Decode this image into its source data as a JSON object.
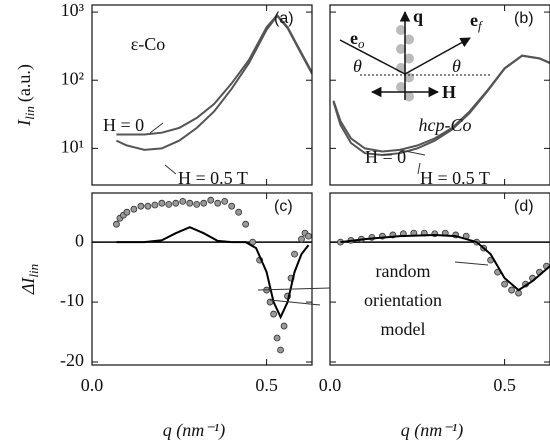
{
  "chart_data": [
    {
      "type": "line",
      "panel_label": "(a)",
      "ylog": true,
      "xlim": [
        0,
        0.63
      ],
      "ylim": [
        2.9,
        1270
      ],
      "xticks": [
        0,
        0.5
      ],
      "xtick_labels": false,
      "yticks": [
        {
          "value": 10,
          "label": "10¹"
        },
        {
          "value": 100,
          "label": "10²"
        },
        {
          "value": 1000,
          "label": "10³"
        }
      ],
      "ytick_labels": true,
      "ylabel": {
        "text": "I",
        "sub": "lin",
        "unit": "(a.u.)"
      },
      "annotations": [
        {
          "text": "ε-Co"
        }
      ],
      "series": [
        {
          "name": "H = 0",
          "color": "#555555",
          "style": "line",
          "x": [
            0.07,
            0.1,
            0.15,
            0.2,
            0.25,
            0.3,
            0.35,
            0.4,
            0.45,
            0.5,
            0.53,
            0.56,
            0.6,
            0.63
          ],
          "values": [
            16,
            16,
            16,
            17,
            20,
            28,
            45,
            90,
            200,
            600,
            900,
            600,
            250,
            130
          ]
        },
        {
          "name": "H = 0.5 T",
          "color": "#555555",
          "style": "line",
          "x": [
            0.07,
            0.1,
            0.15,
            0.2,
            0.25,
            0.3,
            0.35,
            0.4,
            0.45,
            0.5,
            0.53,
            0.56,
            0.6,
            0.63
          ],
          "values": [
            13,
            11,
            9.5,
            10,
            13,
            20,
            35,
            75,
            180,
            550,
            880,
            580,
            240,
            125
          ]
        }
      ]
    },
    {
      "type": "line",
      "panel_label": "(b)",
      "ylog": true,
      "xlim": [
        0,
        0.63
      ],
      "ylim": [
        2.9,
        1270
      ],
      "xticks": [
        0,
        0.5
      ],
      "xtick_labels": false,
      "yticks": [
        10,
        100,
        1000
      ],
      "ytick_labels": false,
      "annotations": [
        {
          "text": "hcp-Co"
        }
      ],
      "inset_labels": [
        {
          "text": "e",
          "sub": "o"
        },
        {
          "text": "q"
        },
        {
          "text": "e",
          "sub": "f"
        },
        {
          "text": "θ"
        },
        {
          "text": "θ"
        },
        {
          "text": "H"
        }
      ],
      "series": [
        {
          "name": "H = 0",
          "color": "#555555",
          "style": "line",
          "x": [
            0.01,
            0.03,
            0.06,
            0.1,
            0.15,
            0.2,
            0.25,
            0.3,
            0.35,
            0.4,
            0.45,
            0.5,
            0.55,
            0.6,
            0.63
          ],
          "values": [
            50,
            25,
            14,
            10,
            9,
            9.5,
            11,
            14,
            20,
            35,
            70,
            150,
            230,
            210,
            180
          ]
        },
        {
          "name": "H = 0.5 T",
          "color": "#555555",
          "style": "line",
          "x": [
            0.01,
            0.03,
            0.06,
            0.1,
            0.15,
            0.2,
            0.25,
            0.3,
            0.35,
            0.4,
            0.45,
            0.5,
            0.55,
            0.6,
            0.63
          ],
          "values": [
            48,
            22,
            12,
            8.5,
            8,
            8.5,
            10,
            13,
            19,
            33,
            68,
            148,
            228,
            208,
            178
          ]
        }
      ]
    },
    {
      "type": "line",
      "panel_label": "(c)",
      "ylog": false,
      "xlim": [
        0,
        0.63
      ],
      "ylim": [
        -20.5,
        8.2
      ],
      "xticks": [
        {
          "value": 0,
          "label": "0.0"
        },
        0.5
      ],
      "xtick_labels": true,
      "yticks": [
        0,
        -10,
        -20
      ],
      "ytick_labels": true,
      "ylabel": {
        "text": "ΔI",
        "sub": "lin"
      },
      "xlabel": "q (nm⁻¹)",
      "series": [
        {
          "color": "#999999",
          "style": "markers",
          "x": [
            0.07,
            0.08,
            0.09,
            0.1,
            0.12,
            0.14,
            0.16,
            0.18,
            0.2,
            0.22,
            0.24,
            0.26,
            0.28,
            0.3,
            0.32,
            0.34,
            0.36,
            0.38,
            0.4,
            0.42,
            0.44,
            0.46,
            0.48,
            0.5,
            0.51,
            0.52,
            0.53,
            0.54,
            0.55,
            0.56,
            0.57,
            0.58,
            0.6,
            0.61,
            0.62
          ],
          "values": [
            3,
            4,
            4.5,
            5,
            5.5,
            6,
            6,
            6.2,
            6.5,
            6.3,
            6.5,
            6.8,
            6.5,
            6.3,
            6.5,
            7,
            6.5,
            6.8,
            6,
            5,
            3,
            0,
            -3,
            -8,
            -10,
            -12,
            -16,
            -18,
            -14,
            -9,
            -6,
            -2,
            0.5,
            1.5,
            1
          ]
        },
        {
          "color": "#000000",
          "style": "line",
          "x": [
            0.07,
            0.15,
            0.2,
            0.24,
            0.28,
            0.32,
            0.36,
            0.4,
            0.44,
            0.47,
            0.5,
            0.52,
            0.54,
            0.56,
            0.58,
            0.6,
            0.62
          ],
          "values": [
            0,
            0,
            0.3,
            1.5,
            2.5,
            1.5,
            0.2,
            0,
            0,
            -1,
            -5,
            -10,
            -12.5,
            -10,
            -5,
            -2,
            -0.5
          ]
        }
      ]
    },
    {
      "type": "line",
      "panel_label": "(d)",
      "ylog": false,
      "xlim": [
        0,
        0.63
      ],
      "ylim": [
        -20.5,
        8.2
      ],
      "xticks": [
        {
          "value": 0,
          "label": "0.0"
        },
        0.5
      ],
      "xtick_labels": true,
      "yticks": [
        0,
        -10,
        -20
      ],
      "ytick_labels": false,
      "xlabel": "q (nm⁻¹)",
      "series": [
        {
          "color": "#999999",
          "style": "markers",
          "x": [
            0.03,
            0.06,
            0.09,
            0.12,
            0.15,
            0.18,
            0.21,
            0.24,
            0.27,
            0.3,
            0.33,
            0.36,
            0.39,
            0.42,
            0.44,
            0.46,
            0.48,
            0.5,
            0.52,
            0.54,
            0.56,
            0.58,
            0.6,
            0.62
          ],
          "values": [
            0,
            0.3,
            0.5,
            0.8,
            1,
            1.2,
            1.4,
            1.5,
            1.5,
            1.4,
            1.5,
            1.2,
            1,
            0,
            -1,
            -3,
            -5,
            -7,
            -8,
            -8.5,
            -7,
            -6,
            -5,
            -4
          ]
        },
        {
          "name": "random orientation model",
          "color": "#000000",
          "style": "line",
          "x": [
            0.03,
            0.1,
            0.2,
            0.3,
            0.36,
            0.42,
            0.46,
            0.5,
            0.54,
            0.58,
            0.63
          ],
          "values": [
            0,
            0.5,
            1,
            1.2,
            1,
            0,
            -2,
            -6,
            -8,
            -6.5,
            -4
          ]
        }
      ]
    }
  ]
}
